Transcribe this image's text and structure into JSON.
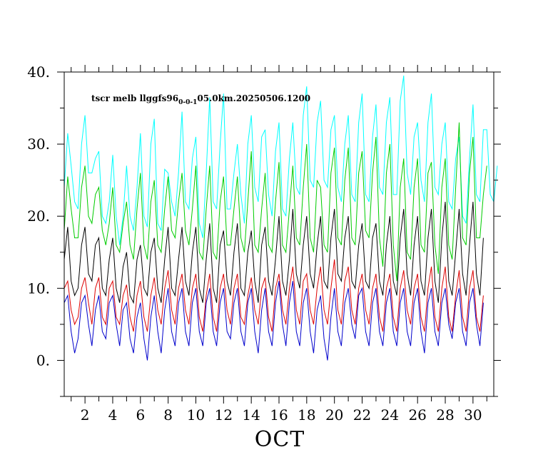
{
  "chart_data": {
    "type": "line",
    "title_main": "tscr melb llggfs96",
    "title_sub": "0-0-1",
    "title_rest": "05.0km.20250506.1200",
    "xlabel": "OCT",
    "ylabel": "",
    "xlim": [
      0.5,
      31.5
    ],
    "ylim": [
      -5,
      40
    ],
    "x_ticks": [
      2,
      4,
      6,
      8,
      10,
      12,
      14,
      16,
      18,
      20,
      22,
      24,
      26,
      28,
      30
    ],
    "x_tick_labels": [
      "2",
      "4",
      "6",
      "8",
      "10",
      "12",
      "14",
      "16",
      "18",
      "20",
      "22",
      "24",
      "26",
      "28",
      "30"
    ],
    "y_ticks": [
      0,
      10,
      20,
      30,
      40
    ],
    "y_tick_labels": [
      "0.",
      "10.",
      "20.",
      "30.",
      "40."
    ],
    "grid": false,
    "samples_per_day": 4,
    "x_start": 0.5,
    "series": [
      {
        "color": "#00ffff",
        "values": [
          24,
          31.5,
          27,
          22,
          21,
          30,
          34,
          26,
          26,
          28,
          29,
          20,
          19,
          22,
          28.5,
          20,
          16,
          20,
          27,
          20,
          18,
          24,
          31.5,
          20,
          18.5,
          30,
          33.5,
          19,
          18,
          26.5,
          26,
          22,
          20,
          26,
          34.5,
          22,
          21,
          28,
          31,
          19,
          17,
          26,
          36.5,
          22,
          21,
          30,
          37,
          21,
          21,
          26,
          30,
          23,
          19,
          30,
          34,
          24,
          22,
          31,
          32,
          23,
          20,
          29,
          33,
          21,
          20,
          28,
          33,
          24,
          23,
          34,
          38,
          25,
          24,
          33,
          36,
          25,
          24,
          32,
          34,
          24,
          22,
          30,
          34,
          23,
          22,
          33,
          37,
          23,
          22,
          31,
          35.5,
          24,
          23,
          33,
          36.5,
          23,
          23,
          36,
          39.5,
          26,
          23,
          31,
          33,
          25,
          22,
          33,
          37,
          24,
          23,
          30,
          33,
          22,
          21,
          28,
          31,
          20,
          19,
          28,
          35.5,
          23,
          22,
          32,
          32,
          23,
          22,
          27
        ]
      },
      {
        "color": "#00cc00",
        "values": [
          18,
          25.5,
          21,
          17,
          17,
          24,
          27,
          20,
          19,
          23,
          24,
          18,
          16,
          19,
          24,
          16,
          15,
          19,
          22,
          16,
          14,
          21,
          26,
          16,
          14,
          22,
          25,
          16,
          15,
          21,
          25.5,
          18,
          17,
          22,
          26,
          18,
          16,
          21,
          27,
          15,
          14,
          21,
          27,
          15,
          14,
          22,
          25.5,
          16,
          16,
          21,
          25.5,
          17,
          15,
          22,
          29,
          16,
          15,
          21,
          26,
          16,
          15,
          22,
          27.5,
          16,
          15,
          21,
          27,
          17,
          16,
          24,
          30,
          17,
          15,
          25,
          24,
          16,
          15,
          26,
          29.5,
          17,
          16,
          25,
          29.5,
          17,
          16,
          26,
          29,
          18,
          17,
          26,
          31,
          17,
          13,
          26,
          30,
          16,
          11,
          24,
          28,
          15,
          14,
          24,
          28,
          16,
          15,
          26,
          27.5,
          16,
          12,
          24,
          28,
          16,
          14,
          24,
          33,
          17,
          16,
          26,
          31,
          17,
          17,
          23,
          27
        ]
      },
      {
        "color": "#000000",
        "values": [
          14,
          18.5,
          11,
          9,
          10,
          16,
          18.5,
          12,
          11,
          16,
          17,
          10,
          9,
          14,
          17,
          10,
          8,
          13,
          15,
          9,
          8,
          14,
          16,
          10,
          9,
          15,
          17,
          10,
          8,
          14,
          18.5,
          10,
          9,
          14,
          18.5,
          11,
          9,
          15,
          18.5,
          10,
          8,
          14,
          19,
          10,
          8,
          16,
          18,
          11,
          9,
          15,
          19,
          10,
          9,
          15,
          18,
          11,
          8,
          16,
          18.5,
          11,
          9,
          14,
          20,
          11,
          9,
          14,
          21,
          12,
          10,
          16,
          20,
          12,
          10,
          16,
          20,
          11,
          10,
          17,
          21,
          12,
          11,
          17,
          20,
          11,
          10,
          16,
          19,
          11,
          10,
          17,
          19,
          11,
          9,
          16,
          20,
          11,
          9,
          17,
          21,
          12,
          9,
          16,
          20,
          11,
          9,
          17,
          21,
          11,
          8,
          17,
          22,
          11,
          9,
          15,
          21,
          12,
          9,
          16,
          22,
          12,
          9,
          17
        ]
      },
      {
        "color": "#dd0000",
        "values": [
          10,
          11,
          7,
          5,
          6,
          10,
          11.5,
          8,
          5,
          10,
          11.5,
          6,
          5,
          10,
          11,
          6,
          5,
          9,
          10.5,
          6,
          4,
          9,
          11,
          6,
          4,
          9,
          11.5,
          7,
          5,
          10,
          12.5,
          7,
          5,
          10,
          12,
          7,
          5,
          10,
          12,
          6,
          4,
          9,
          12,
          6,
          4,
          10,
          12,
          7,
          5,
          10,
          12,
          6,
          5,
          9,
          11.5,
          7,
          5,
          10,
          11.5,
          6,
          4,
          10,
          12,
          7,
          5,
          10,
          13,
          7,
          5,
          11,
          12,
          7,
          5,
          10,
          13,
          7,
          5,
          10,
          14,
          7,
          5,
          11,
          13,
          7,
          5,
          10,
          12,
          7,
          5,
          10,
          12,
          6,
          4,
          10,
          12,
          6,
          4,
          10,
          12.5,
          7,
          5,
          10,
          12,
          6,
          4,
          10,
          13,
          6,
          4,
          10,
          13,
          6,
          4,
          9,
          12.5,
          6,
          4,
          10,
          12.5,
          6,
          4,
          9
        ]
      },
      {
        "color": "#0000cc",
        "values": [
          8,
          9,
          4,
          1,
          3,
          8,
          9,
          5,
          2,
          7,
          9,
          4,
          3,
          8,
          9,
          5,
          2,
          7,
          8,
          3,
          1,
          6,
          8,
          3,
          0,
          6,
          9,
          4,
          1,
          7,
          10,
          4,
          2,
          8,
          10,
          4,
          2,
          8,
          10,
          4,
          2,
          8,
          10,
          4,
          2,
          8,
          10,
          4,
          3,
          8,
          10,
          4,
          2,
          8,
          10,
          4,
          1,
          7,
          10,
          4,
          2,
          8,
          11,
          5,
          2,
          8,
          11,
          4,
          2,
          8,
          10,
          4,
          1,
          7,
          9,
          3,
          0,
          6,
          10,
          4,
          2,
          8,
          10,
          5,
          3,
          9,
          10,
          4,
          2,
          8,
          10,
          4,
          2,
          8,
          10,
          4,
          2,
          8,
          10,
          4,
          2,
          8,
          10,
          4,
          1,
          8,
          10,
          4,
          2,
          8,
          10,
          5,
          3,
          8,
          10,
          4,
          2,
          8,
          10,
          5,
          2,
          8
        ]
      }
    ]
  }
}
